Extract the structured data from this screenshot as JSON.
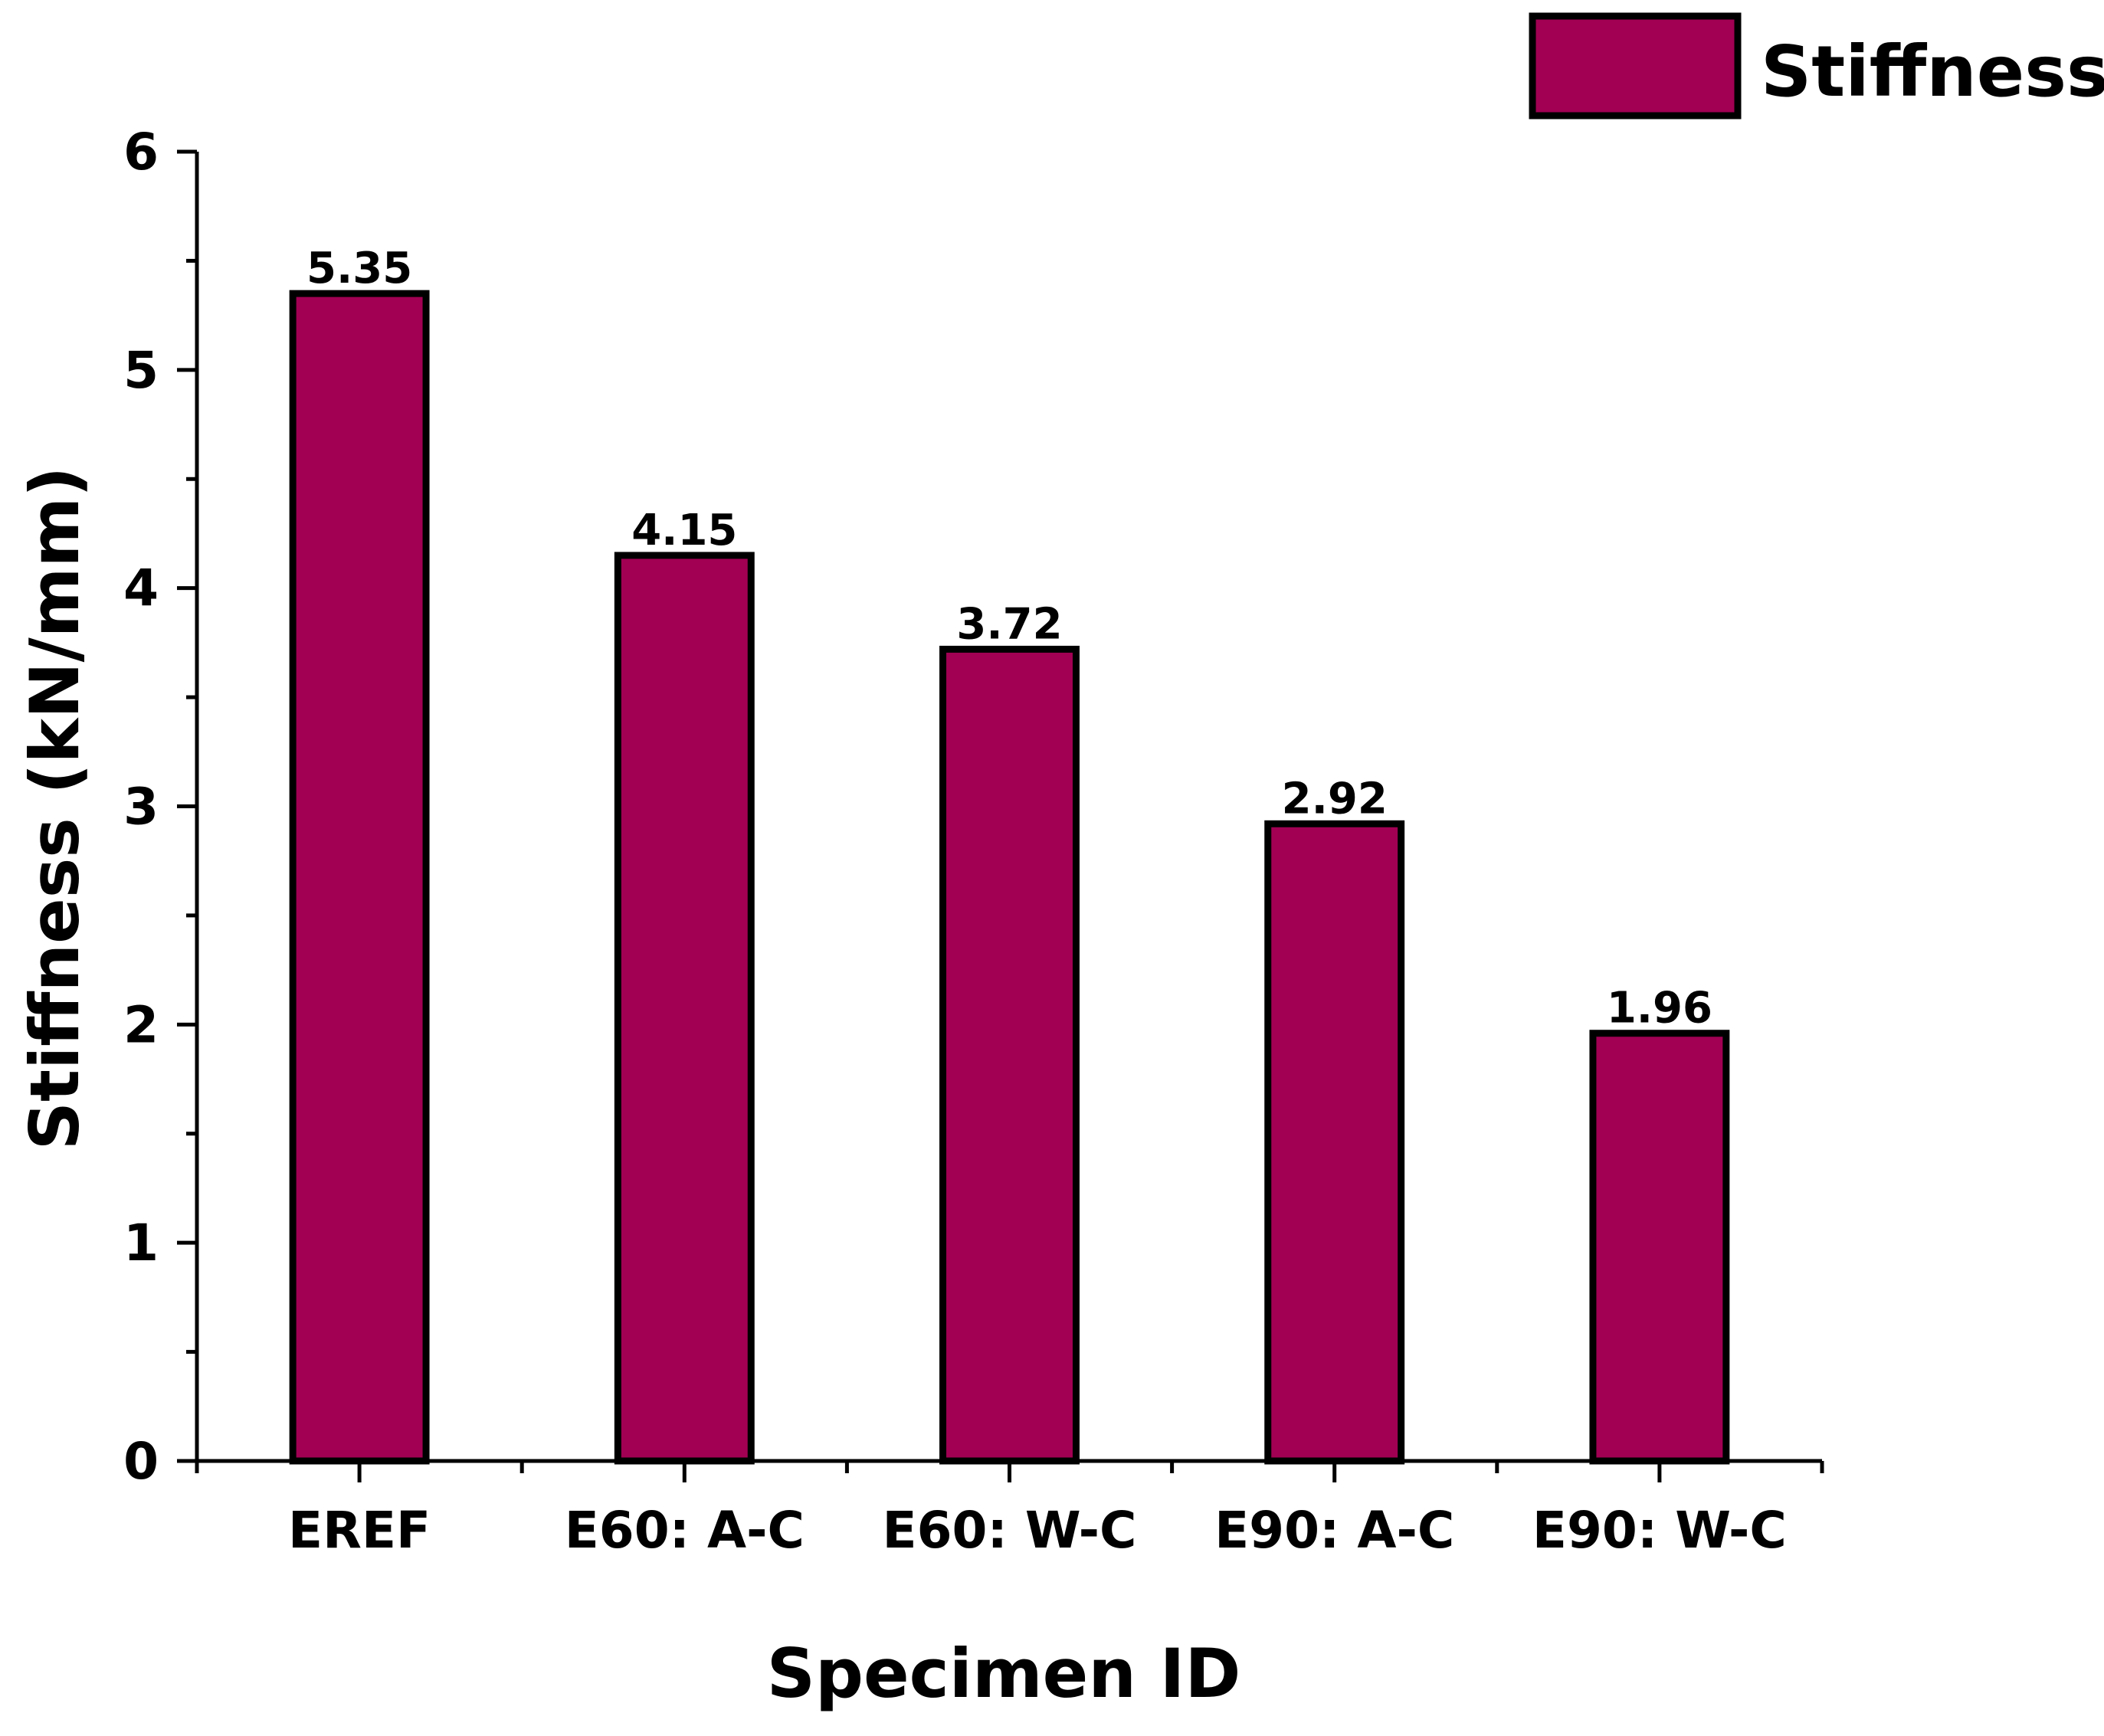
{
  "chart_data": {
    "type": "bar",
    "categories": [
      "EREF",
      "E60: A-C",
      "E60: W-C",
      "E90: A-C",
      "E90: W-C"
    ],
    "series": [
      {
        "name": "Stiffness",
        "values": [
          5.35,
          4.15,
          3.72,
          2.92,
          1.96
        ]
      }
    ],
    "data_labels": [
      "5.35",
      "4.15",
      "3.72",
      "2.92",
      "1.96"
    ],
    "xlabel": "Specimen ID",
    "ylabel": "Stiffness (kN/mm)",
    "ylim": [
      0,
      6
    ],
    "yticks": [
      "0",
      "1",
      "2",
      "3",
      "4",
      "5",
      "6"
    ],
    "grid": false,
    "legend_position": "top-right",
    "colors": {
      "bar": "#A10053",
      "outline": "#000000"
    }
  }
}
